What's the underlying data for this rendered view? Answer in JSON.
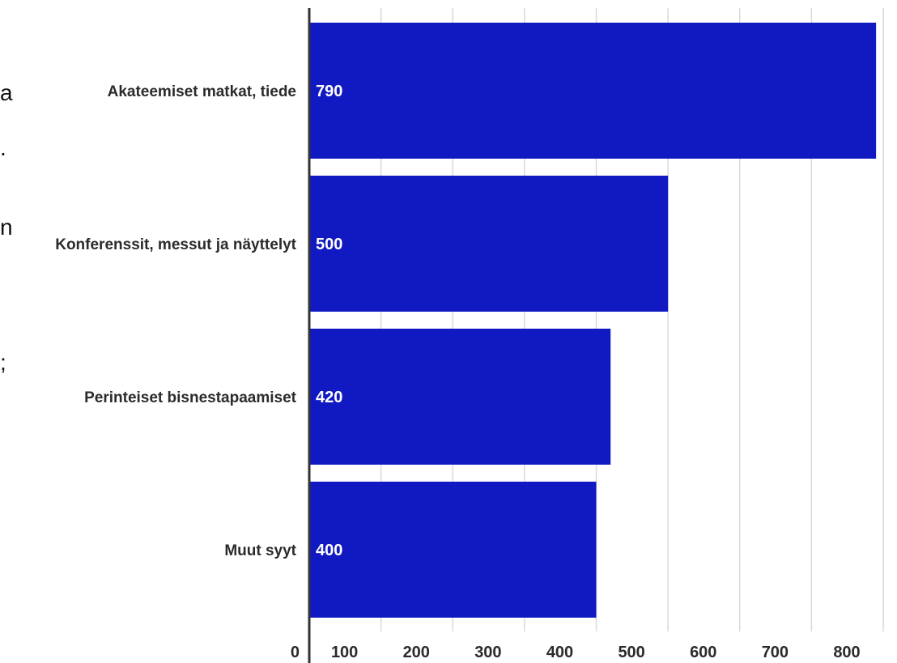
{
  "chart_data": {
    "type": "bar",
    "orientation": "horizontal",
    "categories": [
      "Akateemiset matkat, tiede",
      "Konferenssit, messut ja näyttelyt",
      "Perinteiset bisnestapaamiset",
      "Muut syyt"
    ],
    "values": [
      790,
      500,
      420,
      400
    ],
    "data_labels": [
      "790",
      "500",
      "420",
      "400"
    ],
    "xlim": [
      0,
      800
    ],
    "x_ticks": [
      0,
      100,
      200,
      300,
      400,
      500,
      600,
      700,
      800
    ],
    "x_tick_labels": [
      "0",
      "100",
      "200",
      "300",
      "400",
      "500",
      "600",
      "700",
      "800"
    ],
    "grid": true,
    "bar_color": "#1119c2",
    "grid_color": "#d9d9d9",
    "axis_color": "#333333",
    "label_color": "#2b2b2b"
  },
  "cropped_fragments": [
    "a",
    ".",
    "n",
    ";"
  ]
}
